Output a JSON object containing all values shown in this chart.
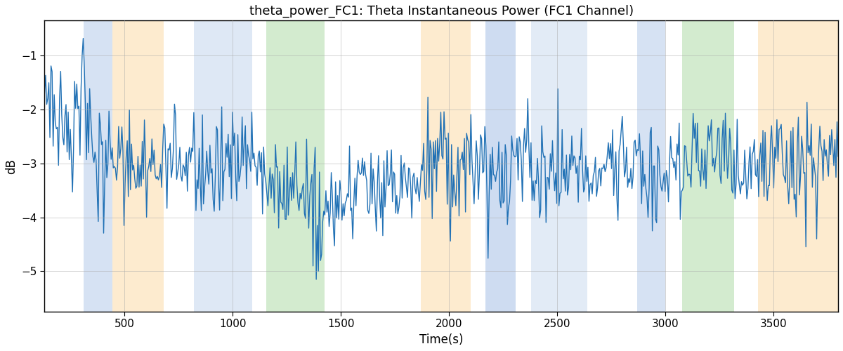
{
  "title": "theta_power_FC1: Theta Instantaneous Power (FC1 Channel)",
  "xlabel": "Time(s)",
  "ylabel": "dB",
  "xlim": [
    130,
    3800
  ],
  "ylim": [
    -5.75,
    -0.35
  ],
  "yticks": [
    -5,
    -4,
    -3,
    -2,
    -1
  ],
  "xticks": [
    500,
    1000,
    1500,
    2000,
    2500,
    3000,
    3500
  ],
  "line_color": "#2171b5",
  "grid_color": "#aaaaaa",
  "bands": [
    {
      "xmin": 310,
      "xmax": 445,
      "color": "#aec6e8",
      "alpha": 0.5
    },
    {
      "xmin": 445,
      "xmax": 680,
      "color": "#fdd9a0",
      "alpha": 0.5
    },
    {
      "xmin": 820,
      "xmax": 1090,
      "color": "#aec6e8",
      "alpha": 0.4
    },
    {
      "xmin": 1155,
      "xmax": 1425,
      "color": "#a8d8a0",
      "alpha": 0.5
    },
    {
      "xmin": 1870,
      "xmax": 2100,
      "color": "#fdd9a0",
      "alpha": 0.5
    },
    {
      "xmin": 2170,
      "xmax": 2310,
      "color": "#aec6e8",
      "alpha": 0.6
    },
    {
      "xmin": 2380,
      "xmax": 2640,
      "color": "#aec6e8",
      "alpha": 0.35
    },
    {
      "xmin": 2870,
      "xmax": 3000,
      "color": "#aec6e8",
      "alpha": 0.5
    },
    {
      "xmin": 3080,
      "xmax": 3320,
      "color": "#a8d8a0",
      "alpha": 0.5
    },
    {
      "xmin": 3430,
      "xmax": 3800,
      "color": "#fdd9a0",
      "alpha": 0.5
    }
  ],
  "seed": 17,
  "n_points": 740,
  "time_start": 130,
  "time_end": 3800
}
